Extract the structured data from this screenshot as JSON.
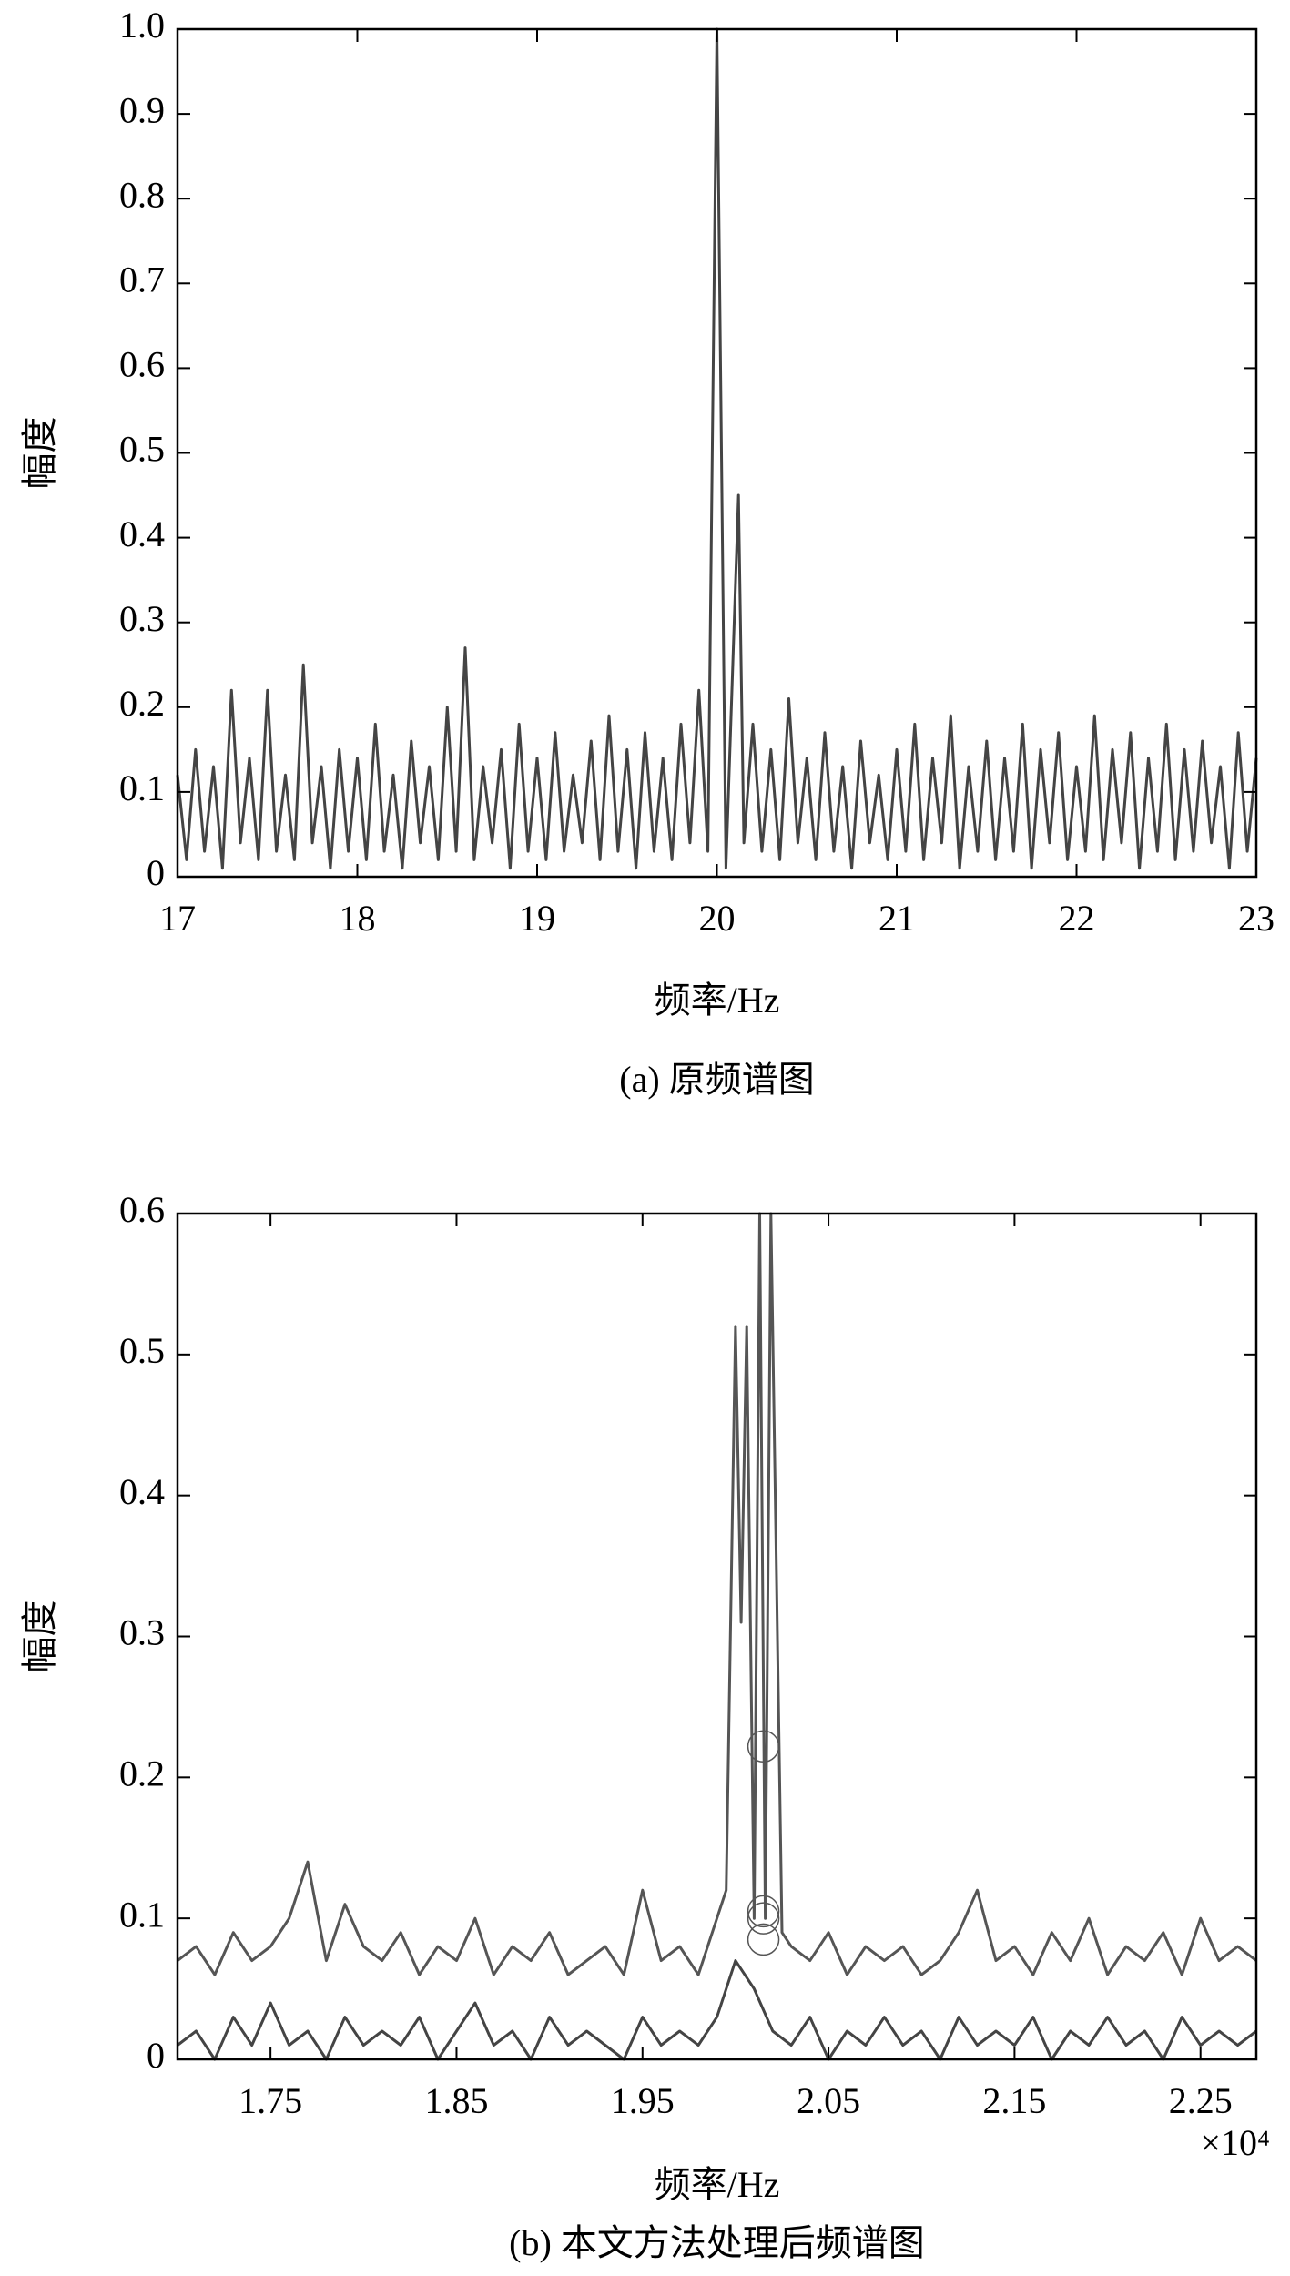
{
  "chart_data": [
    {
      "type": "line",
      "ylabel": "幅度",
      "xlabel": "频率/Hz",
      "caption": "(a) 原频谱图",
      "xlim": [
        17,
        23
      ],
      "ylim": [
        0,
        1
      ],
      "xticks": [
        17,
        18,
        19,
        20,
        21,
        22,
        23
      ],
      "yticks": [
        0,
        0.1,
        0.2,
        0.3,
        0.4,
        0.5,
        0.6,
        0.7,
        0.8,
        0.9,
        {
          "value": 1,
          "label": "1.0"
        }
      ],
      "series": [
        {
          "color": "#444444",
          "x": [
            17.0,
            17.05,
            17.1,
            17.15,
            17.2,
            17.25,
            17.3,
            17.35,
            17.4,
            17.45,
            17.5,
            17.55,
            17.6,
            17.65,
            17.7,
            17.75,
            17.8,
            17.85,
            17.9,
            17.95,
            18.0,
            18.05,
            18.1,
            18.15,
            18.2,
            18.25,
            18.3,
            18.35,
            18.4,
            18.45,
            18.5,
            18.55,
            18.6,
            18.65,
            18.7,
            18.75,
            18.8,
            18.85,
            18.9,
            18.95,
            19.0,
            19.05,
            19.1,
            19.15,
            19.2,
            19.25,
            19.3,
            19.35,
            19.4,
            19.45,
            19.5,
            19.55,
            19.6,
            19.65,
            19.7,
            19.75,
            19.8,
            19.85,
            19.9,
            19.95,
            20.0,
            20.05,
            20.12,
            20.15,
            20.2,
            20.25,
            20.3,
            20.35,
            20.4,
            20.45,
            20.5,
            20.55,
            20.6,
            20.65,
            20.7,
            20.75,
            20.8,
            20.85,
            20.9,
            20.95,
            21.0,
            21.05,
            21.1,
            21.15,
            21.2,
            21.25,
            21.3,
            21.35,
            21.4,
            21.45,
            21.5,
            21.55,
            21.6,
            21.65,
            21.7,
            21.75,
            21.8,
            21.85,
            21.9,
            21.95,
            22.0,
            22.05,
            22.1,
            22.15,
            22.2,
            22.25,
            22.3,
            22.35,
            22.4,
            22.45,
            22.5,
            22.55,
            22.6,
            22.65,
            22.7,
            22.75,
            22.8,
            22.85,
            22.9,
            22.95,
            23.0
          ],
          "values": [
            0.12,
            0.02,
            0.15,
            0.03,
            0.13,
            0.01,
            0.22,
            0.04,
            0.14,
            0.02,
            0.22,
            0.03,
            0.12,
            0.02,
            0.25,
            0.04,
            0.13,
            0.01,
            0.15,
            0.03,
            0.14,
            0.02,
            0.18,
            0.03,
            0.12,
            0.01,
            0.16,
            0.04,
            0.13,
            0.02,
            0.2,
            0.03,
            0.27,
            0.02,
            0.13,
            0.04,
            0.15,
            0.01,
            0.18,
            0.03,
            0.14,
            0.02,
            0.17,
            0.03,
            0.12,
            0.04,
            0.16,
            0.02,
            0.19,
            0.03,
            0.15,
            0.01,
            0.17,
            0.03,
            0.14,
            0.02,
            0.18,
            0.04,
            0.22,
            0.03,
            1.0,
            0.01,
            0.45,
            0.04,
            0.18,
            0.03,
            0.15,
            0.02,
            0.21,
            0.04,
            0.14,
            0.02,
            0.17,
            0.03,
            0.13,
            0.01,
            0.16,
            0.04,
            0.12,
            0.02,
            0.15,
            0.03,
            0.18,
            0.02,
            0.14,
            0.04,
            0.19,
            0.01,
            0.13,
            0.03,
            0.16,
            0.02,
            0.14,
            0.03,
            0.18,
            0.01,
            0.15,
            0.04,
            0.17,
            0.02,
            0.13,
            0.03,
            0.19,
            0.02,
            0.15,
            0.04,
            0.17,
            0.01,
            0.14,
            0.03,
            0.18,
            0.02,
            0.15,
            0.03,
            0.16,
            0.04,
            0.13,
            0.01,
            0.17,
            0.03,
            0.14
          ]
        }
      ]
    },
    {
      "type": "line",
      "ylabel": "幅度",
      "xlabel": "频率/Hz",
      "caption": "(b) 本文方法处理后频谱图",
      "x_multiplier": "×10⁴",
      "xlim": [
        1.7,
        2.28
      ],
      "ylim": [
        0,
        0.6
      ],
      "xticks": [
        1.75,
        1.85,
        1.95,
        2.05,
        2.15,
        2.25
      ],
      "yticks": [
        0,
        0.1,
        0.2,
        0.3,
        0.4,
        0.5,
        0.6
      ],
      "series": [
        {
          "color": "#555555",
          "x": [
            1.7,
            1.71,
            1.72,
            1.73,
            1.74,
            1.75,
            1.76,
            1.77,
            1.78,
            1.79,
            1.8,
            1.81,
            1.82,
            1.83,
            1.84,
            1.85,
            1.86,
            1.87,
            1.88,
            1.89,
            1.9,
            1.91,
            1.92,
            1.93,
            1.94,
            1.95,
            1.96,
            1.97,
            1.98,
            1.99,
            1.995,
            2.0,
            2.003,
            2.006,
            2.01,
            2.013,
            2.016,
            2.019,
            2.025,
            2.03,
            2.04,
            2.05,
            2.06,
            2.07,
            2.08,
            2.09,
            2.1,
            2.11,
            2.12,
            2.13,
            2.14,
            2.15,
            2.16,
            2.17,
            2.18,
            2.19,
            2.2,
            2.21,
            2.22,
            2.23,
            2.24,
            2.25,
            2.26,
            2.27,
            2.28
          ],
          "values": [
            0.07,
            0.08,
            0.06,
            0.09,
            0.07,
            0.08,
            0.1,
            0.14,
            0.07,
            0.11,
            0.08,
            0.07,
            0.09,
            0.06,
            0.08,
            0.07,
            0.1,
            0.06,
            0.08,
            0.07,
            0.09,
            0.06,
            0.07,
            0.08,
            0.06,
            0.12,
            0.07,
            0.08,
            0.06,
            0.1,
            0.12,
            0.52,
            0.31,
            0.52,
            0.1,
            0.6,
            0.1,
            0.6,
            0.09,
            0.08,
            0.07,
            0.09,
            0.06,
            0.08,
            0.07,
            0.08,
            0.06,
            0.07,
            0.09,
            0.12,
            0.07,
            0.08,
            0.06,
            0.09,
            0.07,
            0.1,
            0.06,
            0.08,
            0.07,
            0.09,
            0.06,
            0.1,
            0.07,
            0.08,
            0.07
          ]
        },
        {
          "color": "#444444",
          "x": [
            1.7,
            1.71,
            1.72,
            1.73,
            1.74,
            1.75,
            1.76,
            1.77,
            1.78,
            1.79,
            1.8,
            1.81,
            1.82,
            1.83,
            1.84,
            1.85,
            1.86,
            1.87,
            1.88,
            1.89,
            1.9,
            1.91,
            1.92,
            1.93,
            1.94,
            1.95,
            1.96,
            1.97,
            1.98,
            1.99,
            2.0,
            2.01,
            2.02,
            2.03,
            2.04,
            2.05,
            2.06,
            2.07,
            2.08,
            2.09,
            2.1,
            2.11,
            2.12,
            2.13,
            2.14,
            2.15,
            2.16,
            2.17,
            2.18,
            2.19,
            2.2,
            2.21,
            2.22,
            2.23,
            2.24,
            2.25,
            2.26,
            2.27,
            2.28
          ],
          "values": [
            0.01,
            0.02,
            0.0,
            0.03,
            0.01,
            0.04,
            0.01,
            0.02,
            0.0,
            0.03,
            0.01,
            0.02,
            0.01,
            0.03,
            0.0,
            0.02,
            0.04,
            0.01,
            0.02,
            0.0,
            0.03,
            0.01,
            0.02,
            0.01,
            0.0,
            0.03,
            0.01,
            0.02,
            0.01,
            0.03,
            0.07,
            0.05,
            0.02,
            0.01,
            0.03,
            0.0,
            0.02,
            0.01,
            0.03,
            0.01,
            0.02,
            0.0,
            0.03,
            0.01,
            0.02,
            0.01,
            0.03,
            0.0,
            0.02,
            0.01,
            0.03,
            0.01,
            0.02,
            0.0,
            0.03,
            0.01,
            0.02,
            0.01,
            0.02
          ]
        },
        {
          "color": "#555555",
          "marker": "circle",
          "x": [
            2.015,
            2.015,
            2.015,
            2.015
          ],
          "values": [
            0.222,
            0.105,
            0.1,
            0.085
          ]
        }
      ]
    }
  ]
}
